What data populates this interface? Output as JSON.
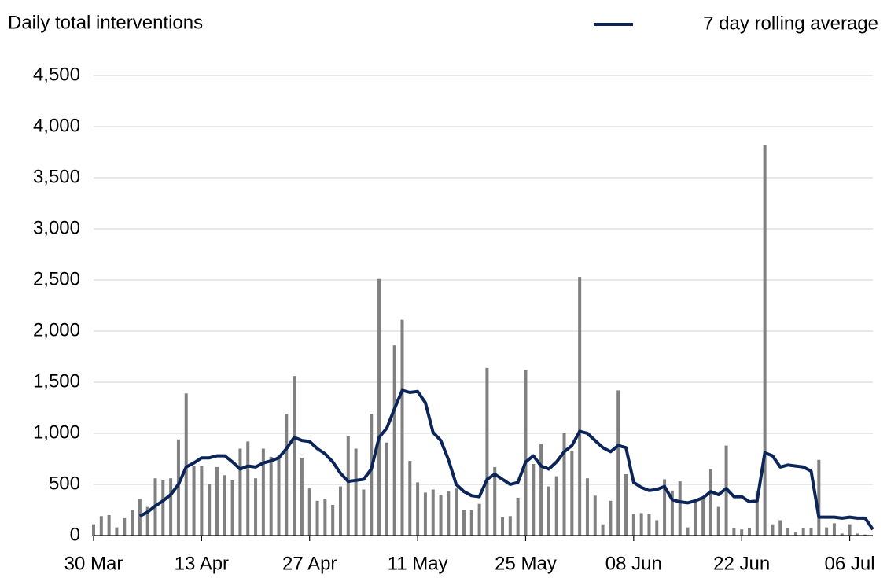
{
  "chart_data": {
    "type": "bar",
    "title": "Daily total interventions",
    "categories": [
      "30 Mar",
      null,
      null,
      null,
      null,
      null,
      null,
      null,
      null,
      null,
      null,
      null,
      null,
      null,
      "13 Apr",
      null,
      null,
      null,
      null,
      null,
      null,
      null,
      null,
      null,
      null,
      null,
      null,
      null,
      "27 Apr",
      null,
      null,
      null,
      null,
      null,
      null,
      null,
      null,
      null,
      null,
      null,
      null,
      null,
      "11 May",
      null,
      null,
      null,
      null,
      null,
      null,
      null,
      null,
      null,
      null,
      null,
      null,
      null,
      "25 May",
      null,
      null,
      null,
      null,
      null,
      null,
      null,
      null,
      null,
      null,
      null,
      null,
      null,
      "08 Jun",
      null,
      null,
      null,
      null,
      null,
      null,
      null,
      null,
      null,
      null,
      null,
      null,
      null,
      "22 Jun",
      null,
      null,
      null,
      null,
      null,
      null,
      null,
      null,
      null,
      null,
      null,
      null,
      null,
      "06 Jul",
      null,
      null,
      null
    ],
    "series": [
      {
        "color": "#808080",
        "values": [
          110,
          190,
          200,
          80,
          170,
          250,
          360,
          280,
          560,
          540,
          560,
          940,
          1390,
          680,
          680,
          500,
          670,
          590,
          540,
          850,
          920,
          560,
          850,
          770,
          780,
          1190,
          1560,
          760,
          460,
          340,
          360,
          300,
          480,
          970,
          850,
          450,
          1190,
          2510,
          910,
          1860,
          2110,
          730,
          520,
          420,
          450,
          400,
          430,
          460,
          250,
          250,
          310,
          1640,
          670,
          180,
          190,
          370,
          1620,
          700,
          900,
          480,
          580,
          1000,
          830,
          2530,
          560,
          390,
          110,
          340,
          1420,
          600,
          210,
          220,
          210,
          150,
          550,
          440,
          530,
          80,
          330,
          370,
          650,
          280,
          880,
          70,
          60,
          70,
          440,
          3820,
          110,
          150,
          70,
          30,
          70,
          70,
          740,
          80,
          120,
          20,
          110,
          20,
          10,
          null
        ]
      },
      {
        "name": "7 day rolling average",
        "type": "line",
        "color": "#0b2559",
        "values": [
          null,
          null,
          null,
          null,
          null,
          null,
          190,
          230,
          290,
          340,
          400,
          500,
          670,
          710,
          760,
          760,
          780,
          780,
          720,
          650,
          680,
          670,
          710,
          730,
          760,
          850,
          960,
          930,
          920,
          850,
          800,
          720,
          610,
          530,
          540,
          550,
          650,
          960,
          1050,
          1240,
          1420,
          1400,
          1410,
          1300,
          1010,
          930,
          740,
          500,
          430,
          390,
          380,
          550,
          600,
          550,
          500,
          520,
          720,
          780,
          680,
          650,
          720,
          820,
          880,
          1020,
          1000,
          930,
          860,
          820,
          880,
          860,
          520,
          470,
          440,
          450,
          480,
          350,
          330,
          320,
          340,
          370,
          430,
          400,
          460,
          380,
          380,
          330,
          340,
          810,
          780,
          670,
          690,
          680,
          670,
          630,
          180,
          180,
          180,
          170,
          180,
          170,
          170,
          60
        ]
      }
    ],
    "ylim": [
      0,
      4500
    ],
    "yticks": [
      0,
      500,
      {
        "value": 1000,
        "label": "1,000"
      },
      {
        "value": 1500,
        "label": "1,500"
      },
      {
        "value": 2000,
        "label": "2,000"
      },
      {
        "value": 2500,
        "label": "2,500"
      },
      {
        "value": 3000,
        "label": "3,000"
      },
      {
        "value": 3500,
        "label": "3,500"
      },
      {
        "value": 4000,
        "label": "4,000"
      },
      {
        "value": 4500,
        "label": "4,500"
      }
    ],
    "grid": true,
    "legend": "top-right"
  }
}
